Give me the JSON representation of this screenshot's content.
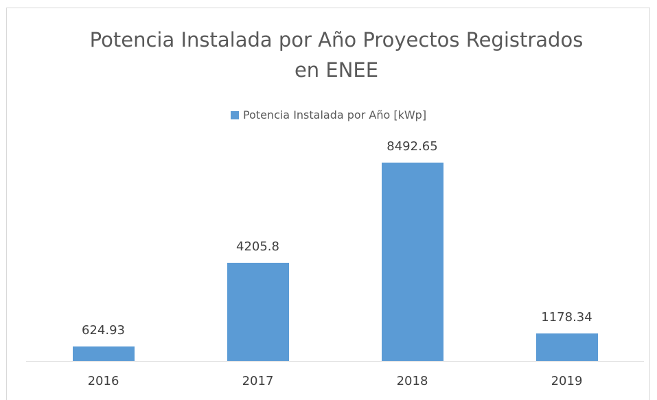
{
  "chart_data": {
    "type": "bar",
    "title": "Potencia Instalada por Año Proyectos Registrados en ENEE",
    "categories": [
      "2016",
      "2017",
      "2018",
      "2019"
    ],
    "series": [
      {
        "name": "Potencia Instalada por Año [kWp]",
        "color": "#5b9bd5",
        "values": [
          624.93,
          4205.8,
          8492.65,
          1178.34
        ]
      }
    ],
    "ylim": [
      0,
      10000
    ],
    "legend": "top",
    "data_labels": true
  }
}
